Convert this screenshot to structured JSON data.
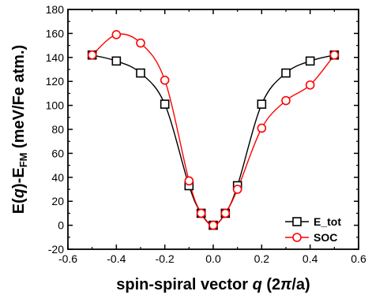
{
  "chart_data": {
    "type": "line",
    "xlabel": "spin-spiral vector q (2π/a)",
    "xlabel_parts": [
      "spin-spiral vector ",
      "q",
      " (2",
      "π",
      "/a)"
    ],
    "ylabel": "E(q)-E_FM (meV/Fe atm.)",
    "ylabel_parts": [
      "E(",
      "q",
      ")-E",
      "FM",
      " (meV/Fe atm.)"
    ],
    "xlim": [
      -0.6,
      0.6
    ],
    "ylim": [
      -20,
      180
    ],
    "xticks": [
      "-0.6",
      "-0.4",
      "-0.2",
      "0.0",
      "0.2",
      "0.4",
      "0.6"
    ],
    "xtick_values": [
      -0.6,
      -0.4,
      -0.2,
      0.0,
      0.2,
      0.4,
      0.6
    ],
    "yticks": [
      "-20",
      "0",
      "20",
      "40",
      "60",
      "80",
      "100",
      "120",
      "140",
      "160",
      "180"
    ],
    "ytick_values": [
      -20,
      0,
      20,
      40,
      60,
      80,
      100,
      120,
      140,
      160,
      180
    ],
    "grid": false,
    "legend_position": "bottom-right",
    "series": [
      {
        "name": "E_tot",
        "color": "#000000",
        "marker": "square",
        "x": [
          -0.5,
          -0.4,
          -0.3,
          -0.2,
          -0.1,
          -0.05,
          0.0,
          0.05,
          0.1,
          0.2,
          0.3,
          0.4,
          0.5
        ],
        "y": [
          142,
          137,
          127,
          101,
          33,
          10,
          0,
          10,
          33,
          101,
          127,
          137,
          142
        ]
      },
      {
        "name": "SOC",
        "color": "#ff0000",
        "marker": "circle",
        "x": [
          -0.5,
          -0.4,
          -0.3,
          -0.2,
          -0.1,
          -0.05,
          0.0,
          0.05,
          0.1,
          0.2,
          0.3,
          0.4,
          0.5
        ],
        "y": [
          142,
          159,
          152,
          121,
          37,
          10,
          0,
          10,
          30,
          81,
          104,
          117,
          142
        ]
      }
    ]
  }
}
